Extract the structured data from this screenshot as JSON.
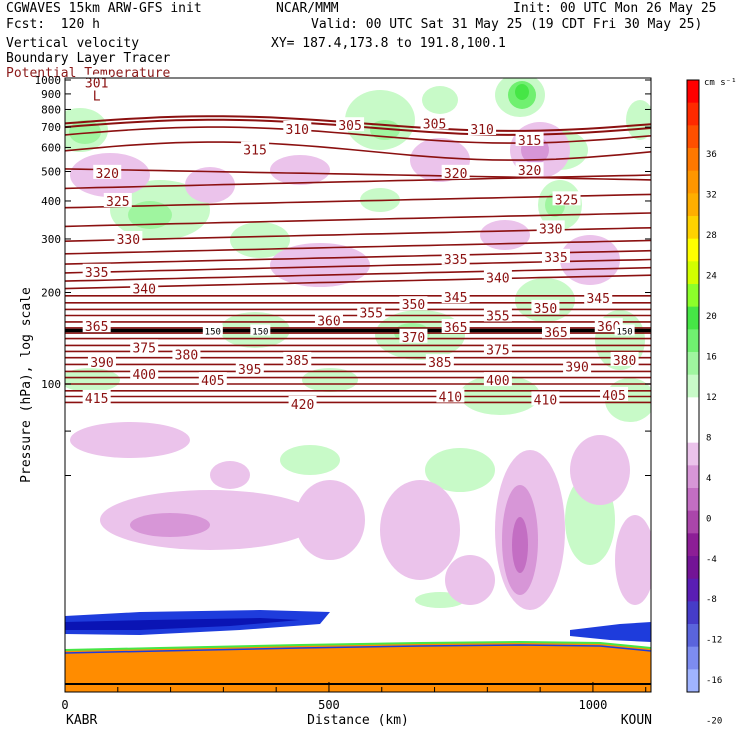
{
  "header": {
    "model": "CGWAVES 15km ARW-GFS init",
    "forecast": "Fcst:  120 h",
    "field1": "Vertical velocity",
    "field2": "Boundary Layer Tracer",
    "field3": "Potential Temperature",
    "org": "NCAR/MMM",
    "init": "Init: 00 UTC Mon 26 May 25",
    "valid": "Valid: 00 UTC Sat 31 May 25 (19 CDT Fri 30 May 25)",
    "xy": "XY= 187.4,173.8 to 191.8,100.1"
  },
  "chart_data": {
    "type": "heatmap",
    "xlabel": "Distance (km)",
    "ylabel": "Pressure (hPa), log scale",
    "xlim": [
      0,
      1110
    ],
    "x_ticks": [
      "0",
      "500",
      "1000"
    ],
    "x_tick_values": [
      0,
      500,
      1000
    ],
    "y_ticks": [
      "100",
      "200",
      "300",
      "400",
      "500",
      "600",
      "700",
      "800",
      "900",
      "1000"
    ],
    "y_tick_values": [
      100,
      200,
      300,
      400,
      500,
      600,
      700,
      800,
      900,
      1000
    ],
    "y_scale": "log",
    "left_station": "KABR",
    "right_station": "KOUN",
    "colorbar": {
      "units": "cm s⁻¹",
      "labels": [
        "36",
        "32",
        "28",
        "24",
        "20",
        "16",
        "12",
        "8",
        "4",
        "0",
        "-4",
        "-8",
        "-12",
        "-16",
        "-20"
      ],
      "colors": [
        "#ff0000",
        "#ff2a00",
        "#ff5000",
        "#ff7800",
        "#ff9600",
        "#ffae00",
        "#ffd200",
        "#ffff00",
        "#d2ff00",
        "#8cff2a",
        "#46e646",
        "#70f070",
        "#9ff59f",
        "#c8fac8",
        "#ffffff",
        "#ffffff",
        "#ebc3eb",
        "#d796d7",
        "#c36ec3",
        "#aa46aa",
        "#8c1e96",
        "#731496",
        "#5a1eb4",
        "#463cc8",
        "#5a64dc",
        "#7d8cf0",
        "#a0b4ff"
      ]
    },
    "theta_labels": [
      {
        "text": "415",
        "x": 60,
        "p": 90
      },
      {
        "text": "420",
        "x": 450,
        "p": 86
      },
      {
        "text": "410",
        "x": 730,
        "p": 91
      },
      {
        "text": "410",
        "x": 910,
        "p": 89
      },
      {
        "text": "405",
        "x": 1040,
        "p": 92
      },
      {
        "text": "400",
        "x": 150,
        "p": 108
      },
      {
        "text": "405",
        "x": 280,
        "p": 103
      },
      {
        "text": "395",
        "x": 350,
        "p": 112
      },
      {
        "text": "400",
        "x": 820,
        "p": 103
      },
      {
        "text": "390",
        "x": 70,
        "p": 118
      },
      {
        "text": "390",
        "x": 970,
        "p": 114
      },
      {
        "text": "380",
        "x": 230,
        "p": 125
      },
      {
        "text": "385",
        "x": 440,
        "p": 120
      },
      {
        "text": "385",
        "x": 710,
        "p": 118
      },
      {
        "text": "380",
        "x": 1060,
        "p": 120
      },
      {
        "text": "375",
        "x": 150,
        "p": 132
      },
      {
        "text": "375",
        "x": 820,
        "p": 130
      },
      {
        "text": "370",
        "x": 660,
        "p": 143
      },
      {
        "text": "365",
        "x": 60,
        "p": 155
      },
      {
        "text": "365",
        "x": 740,
        "p": 154
      },
      {
        "text": "365",
        "x": 930,
        "p": 148
      },
      {
        "text": "360",
        "x": 1030,
        "p": 155
      },
      {
        "text": "360",
        "x": 500,
        "p": 162
      },
      {
        "text": "355",
        "x": 580,
        "p": 172
      },
      {
        "text": "355",
        "x": 820,
        "p": 168
      },
      {
        "text": "350",
        "x": 660,
        "p": 183
      },
      {
        "text": "350",
        "x": 910,
        "p": 178
      },
      {
        "text": "345",
        "x": 740,
        "p": 193
      },
      {
        "text": "345",
        "x": 1010,
        "p": 192
      },
      {
        "text": "340",
        "x": 150,
        "p": 206
      },
      {
        "text": "340",
        "x": 820,
        "p": 224
      },
      {
        "text": "335",
        "x": 60,
        "p": 234
      },
      {
        "text": "335",
        "x": 740,
        "p": 258
      },
      {
        "text": "335",
        "x": 930,
        "p": 262
      },
      {
        "text": "330",
        "x": 120,
        "p": 300
      },
      {
        "text": "330",
        "x": 920,
        "p": 325
      },
      {
        "text": "325",
        "x": 100,
        "p": 400
      },
      {
        "text": "325",
        "x": 950,
        "p": 405
      },
      {
        "text": "320",
        "x": 80,
        "p": 495
      },
      {
        "text": "320",
        "x": 740,
        "p": 495
      },
      {
        "text": "320",
        "x": 880,
        "p": 505
      },
      {
        "text": "315",
        "x": 360,
        "p": 590
      },
      {
        "text": "315",
        "x": 880,
        "p": 635
      },
      {
        "text": "310",
        "x": 440,
        "p": 690
      },
      {
        "text": "310",
        "x": 790,
        "p": 690
      },
      {
        "text": "305",
        "x": 540,
        "p": 710
      },
      {
        "text": "305",
        "x": 700,
        "p": 720
      },
      {
        "text": "301",
        "x": 60,
        "p": 980
      }
    ],
    "tracer_labels": [
      {
        "text": "150",
        "x": 280,
        "p": 150
      },
      {
        "text": "150",
        "x": 370,
        "p": 150
      },
      {
        "text": "150",
        "x": 1060,
        "p": 150
      }
    ],
    "low_marker": {
      "text": "L",
      "x": 60,
      "p": 890
    }
  }
}
